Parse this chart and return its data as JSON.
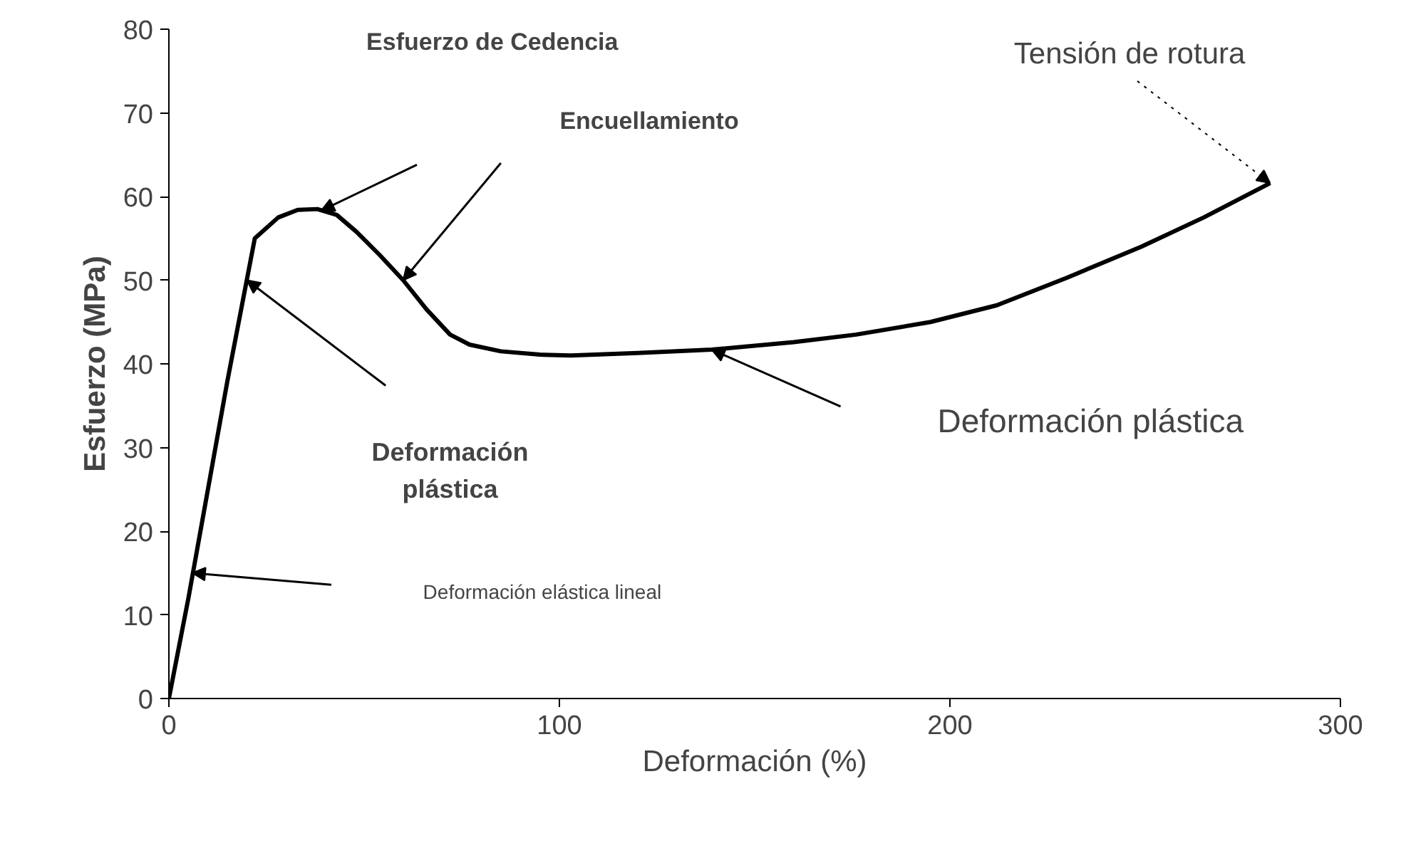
{
  "chart_data": {
    "type": "line",
    "xlabel": "Deformación (%)",
    "ylabel": "Esfuerzo (MPa)",
    "x": [
      0,
      5,
      10,
      15,
      22,
      28,
      33,
      38,
      43,
      48,
      54,
      60,
      66,
      72,
      77,
      85,
      95,
      103,
      120,
      139,
      160,
      176,
      195,
      212,
      230,
      249,
      265,
      282
    ],
    "series": [
      {
        "color": "#000000",
        "values": [
          0,
          12,
          25,
          38,
          55,
          57.5,
          58.4,
          58.5,
          57.8,
          55.8,
          53,
          50,
          46.5,
          43.5,
          42.3,
          41.5,
          41.1,
          41,
          41.3,
          41.7,
          42.6,
          43.5,
          45,
          47,
          50.3,
          54,
          57.5,
          61.6
        ]
      }
    ],
    "xlim": [
      0,
      300
    ],
    "ylim": [
      0,
      80
    ],
    "xticks": [
      0,
      100,
      200,
      300
    ],
    "yticks": [
      0,
      10,
      20,
      30,
      40,
      50,
      60,
      70,
      80
    ],
    "grid": false,
    "marker": "none",
    "line_style": "solid",
    "annotations": [
      "Esfuerzo de Cedencia",
      "Encuellamiento",
      {
        "text": "Tensión de rotura",
        "x": 282,
        "y": 61.6
      },
      "Deformación plástica",
      "Deformación\nplástica",
      "Deformación elástica lineal"
    ]
  }
}
